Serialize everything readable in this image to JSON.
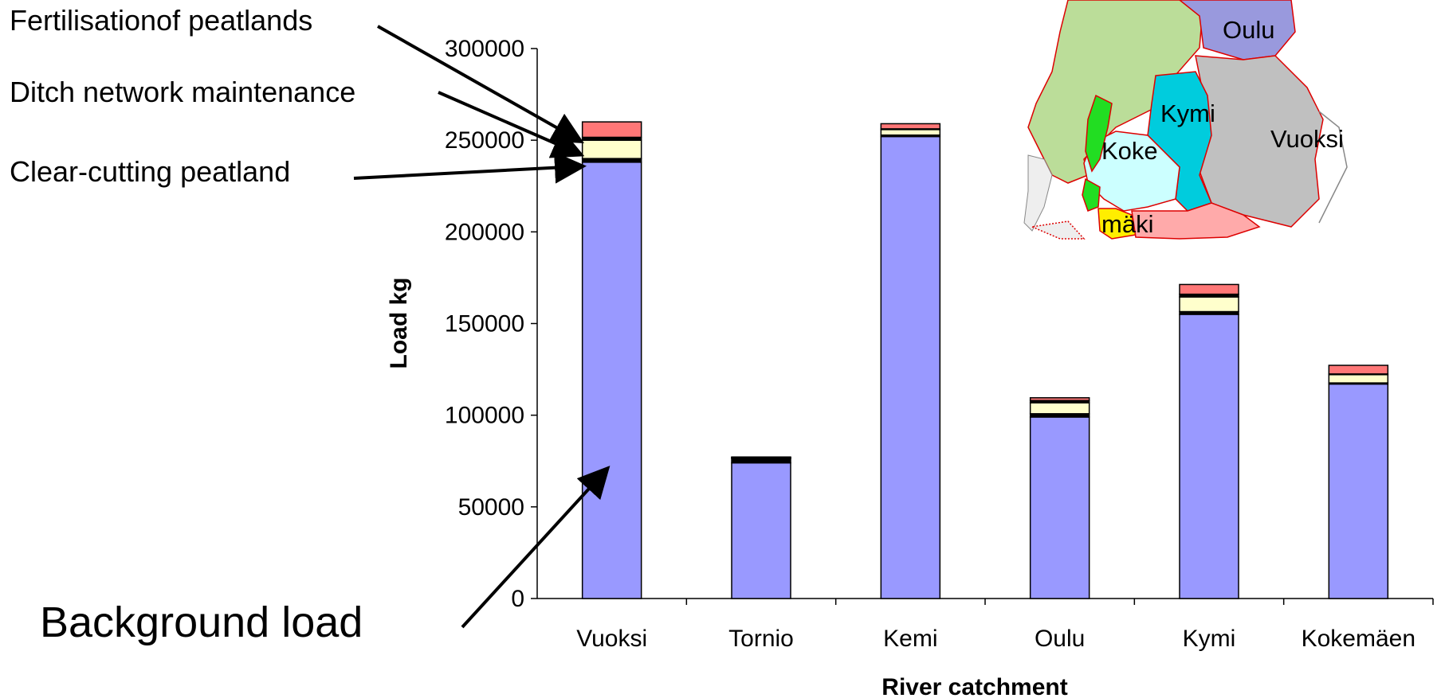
{
  "chart_data": {
    "type": "bar",
    "stacked": true,
    "title": "",
    "xlabel": "River catchment",
    "ylabel": "Load kg",
    "ylim": [
      0,
      300000
    ],
    "yticks": [
      "0",
      "50000",
      "100000",
      "150000",
      "200000",
      "250000",
      "300000"
    ],
    "categories": [
      "Vuoksi",
      "Tornio",
      "Kemi",
      "Oulu",
      "Kymi",
      "Kokemäen"
    ],
    "grid": false,
    "series": [
      {
        "name": "Background load",
        "color": "#9999ff",
        "values": [
          238000,
          74000,
          252000,
          99000,
          155000,
          117000
        ]
      },
      {
        "name": "Clear-cutting peatland",
        "color": "#000000",
        "values": [
          2000,
          2500,
          800,
          1800,
          1500,
          600
        ]
      },
      {
        "name": "Ditch network maintenance",
        "color": "#ffffcc",
        "values": [
          10000,
          200,
          3000,
          6000,
          8000,
          4500
        ]
      },
      {
        "name": "",
        "color": "#000000",
        "values": [
          1600,
          200,
          400,
          1200,
          1500,
          400
        ]
      },
      {
        "name": "Fertilisationof peatlands",
        "color": "#ff7777",
        "values": [
          8400,
          300,
          2800,
          1500,
          5300,
          4700
        ]
      }
    ]
  },
  "annotations": {
    "fertilisation": "Fertilisationof peatlands",
    "ditch": "Ditch network maintenance",
    "clearcut": "Clear-cutting peatland",
    "background": "Background load"
  },
  "inset_map": {
    "labels": [
      "Oulu",
      "Kymi",
      "Vuoksi",
      "Koke",
      "mäki"
    ],
    "colors": {
      "oulu": "#9999dd",
      "kymi": "#00ccdd",
      "vuoksi": "#c0c0c0",
      "koke": "#ccffff",
      "north": "#bbdd99",
      "green": "#22dd22",
      "yellow": "#ffee00",
      "south": "#ffaaaa",
      "border": "#dd0000"
    }
  }
}
